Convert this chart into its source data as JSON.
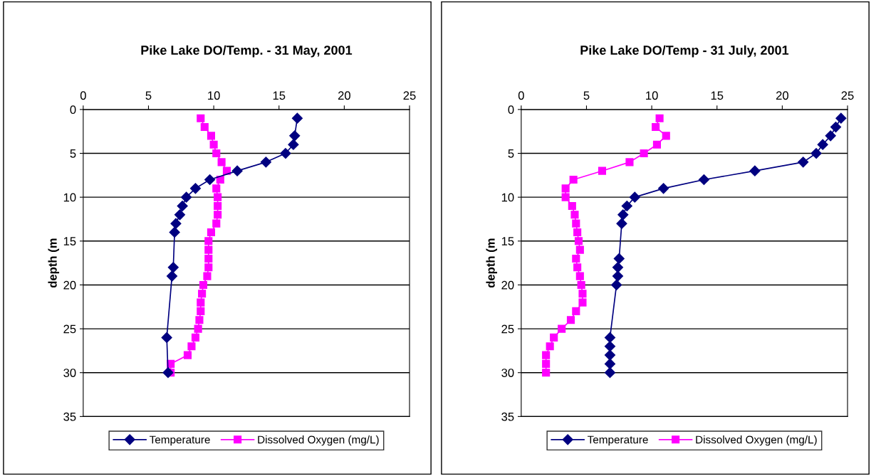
{
  "chart_data": [
    {
      "type": "line",
      "title": "Pike Lake DO/Temp. - 31 May, 2001",
      "ylabel": "depth (m",
      "xlim": [
        0,
        25
      ],
      "xticks": [
        0,
        5,
        10,
        15,
        20,
        25
      ],
      "ylim": [
        35,
        0
      ],
      "yticks": [
        0,
        5,
        10,
        15,
        20,
        25,
        30,
        35
      ],
      "grid": "y",
      "legend": "bottom",
      "series": [
        {
          "name": "Temperature",
          "color": "#000080",
          "marker": "diamond",
          "x": [
            16.4,
            16.2,
            16.1,
            15.5,
            14.0,
            11.8,
            9.7,
            8.6,
            7.9,
            7.6,
            7.4,
            7.1,
            7.0,
            6.9,
            6.8,
            6.4,
            6.5
          ],
          "values": [
            1,
            3,
            4,
            5,
            6,
            7,
            8,
            9,
            10,
            11,
            12,
            13,
            14,
            18,
            19,
            26,
            30
          ]
        },
        {
          "name": "Dissolved Oxygen (mg/L)",
          "color": "#ff00ff",
          "marker": "square",
          "x": [
            9.0,
            9.3,
            9.8,
            10.0,
            10.2,
            10.6,
            11.0,
            10.5,
            10.2,
            10.3,
            10.3,
            10.3,
            10.2,
            9.8,
            9.6,
            9.6,
            9.6,
            9.6,
            9.5,
            9.2,
            9.1,
            9.0,
            9.0,
            8.9,
            8.8,
            8.6,
            8.3,
            8.0,
            6.7,
            6.7
          ],
          "values": [
            1,
            2,
            3,
            4,
            5,
            6,
            7,
            8,
            9,
            10,
            11,
            12,
            13,
            14,
            15,
            16,
            17,
            18,
            19,
            20,
            21,
            22,
            23,
            24,
            25,
            26,
            27,
            28,
            29,
            30
          ]
        }
      ]
    },
    {
      "type": "line",
      "title": "Pike Lake DO/Temp - 31 July, 2001",
      "ylabel": "depth (m",
      "xlim": [
        0,
        25
      ],
      "xticks": [
        0,
        5,
        10,
        15,
        20,
        25
      ],
      "ylim": [
        35,
        0
      ],
      "yticks": [
        0,
        5,
        10,
        15,
        20,
        25,
        30,
        35
      ],
      "grid": "y",
      "legend": "bottom",
      "series": [
        {
          "name": "Temperature",
          "color": "#000080",
          "marker": "diamond",
          "x": [
            24.5,
            24.1,
            23.7,
            23.1,
            22.6,
            21.6,
            17.9,
            14.0,
            10.9,
            8.7,
            8.1,
            7.8,
            7.7,
            7.5,
            7.4,
            7.4,
            7.3,
            6.8,
            6.8,
            6.8,
            6.8,
            6.8
          ],
          "values": [
            1,
            2,
            3,
            4,
            5,
            6,
            7,
            8,
            9,
            10,
            11,
            12,
            13,
            17,
            18,
            19,
            20,
            26,
            27,
            28,
            29,
            30
          ]
        },
        {
          "name": "Dissolved Oxygen (mg/L)",
          "color": "#ff00ff",
          "marker": "square",
          "x": [
            10.6,
            10.3,
            11.1,
            10.4,
            9.4,
            8.3,
            6.2,
            4.0,
            3.4,
            3.4,
            3.9,
            4.1,
            4.2,
            4.3,
            4.4,
            4.5,
            4.2,
            4.3,
            4.5,
            4.6,
            4.7,
            4.7,
            4.2,
            3.8,
            3.1,
            2.5,
            2.2,
            1.9,
            1.9,
            1.9
          ],
          "values": [
            1,
            2,
            3,
            4,
            5,
            6,
            7,
            8,
            9,
            10,
            11,
            12,
            13,
            14,
            15,
            16,
            17,
            18,
            19,
            20,
            21,
            22,
            23,
            24,
            25,
            26,
            27,
            28,
            29,
            30
          ]
        }
      ]
    }
  ]
}
